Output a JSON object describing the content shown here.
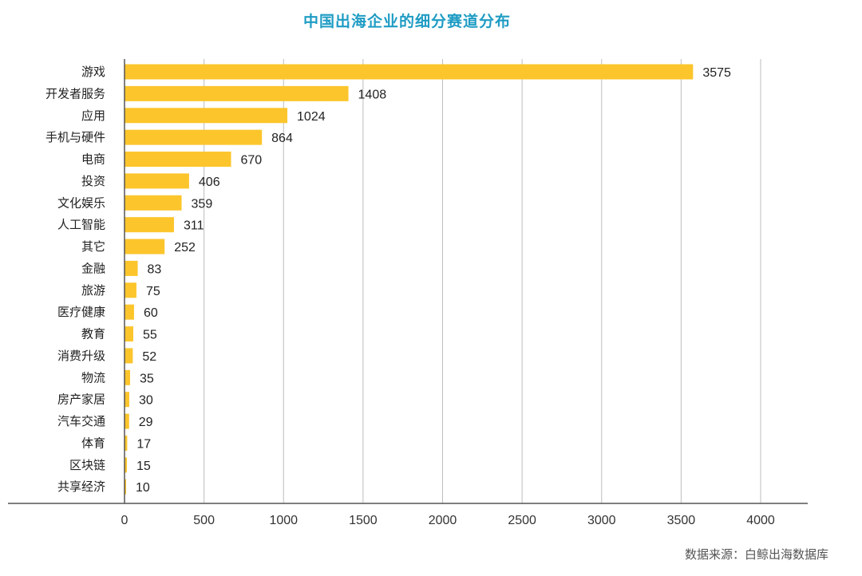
{
  "chart_data": {
    "type": "bar",
    "orientation": "horizontal",
    "title": "中国出海企业的细分赛道分布",
    "categories": [
      "游戏",
      "开发者服务",
      "应用",
      "手机与硬件",
      "电商",
      "投资",
      "文化娱乐",
      "人工智能",
      "其它",
      "金融",
      "旅游",
      "医疗健康",
      "教育",
      "消费升级",
      "物流",
      "房产家居",
      "汽车交通",
      "体育",
      "区块链",
      "共享经济"
    ],
    "values": [
      3575,
      1408,
      1024,
      864,
      670,
      406,
      359,
      311,
      252,
      83,
      75,
      60,
      55,
      52,
      35,
      30,
      29,
      17,
      15,
      10
    ],
    "xlim": [
      0,
      4000
    ],
    "xticks": [
      0,
      500,
      1000,
      1500,
      2000,
      2500,
      3000,
      3500,
      4000
    ],
    "grid": true,
    "bar_color": "#fcc52c",
    "data_labels": true
  },
  "title_color": "#1f9cc4",
  "source": {
    "label": "数据来源：",
    "value": "白鲸出海数据库"
  }
}
